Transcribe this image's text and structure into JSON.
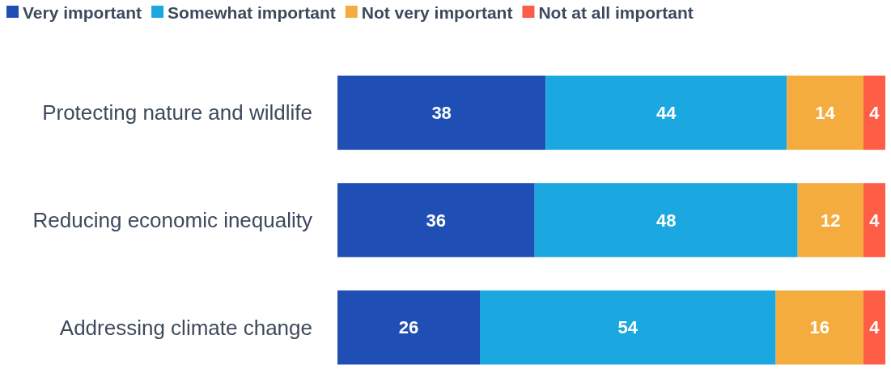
{
  "chart_data": {
    "type": "bar",
    "orientation": "horizontal",
    "stacked": true,
    "categories": [
      "Protecting nature and wildlife",
      "Reducing economic inequality",
      "Addressing climate change"
    ],
    "series": [
      {
        "name": "Very important",
        "color": "#1f4fb5",
        "values": [
          38,
          36,
          26
        ]
      },
      {
        "name": "Somewhat important",
        "color": "#1ba8e0",
        "values": [
          44,
          48,
          54
        ]
      },
      {
        "name": "Not very important",
        "color": "#f5ac3f",
        "values": [
          14,
          12,
          16
        ]
      },
      {
        "name": "Not at all important",
        "color": "#fd5e45",
        "values": [
          4,
          4,
          4
        ]
      }
    ],
    "data_labels": true,
    "legend": "top"
  }
}
